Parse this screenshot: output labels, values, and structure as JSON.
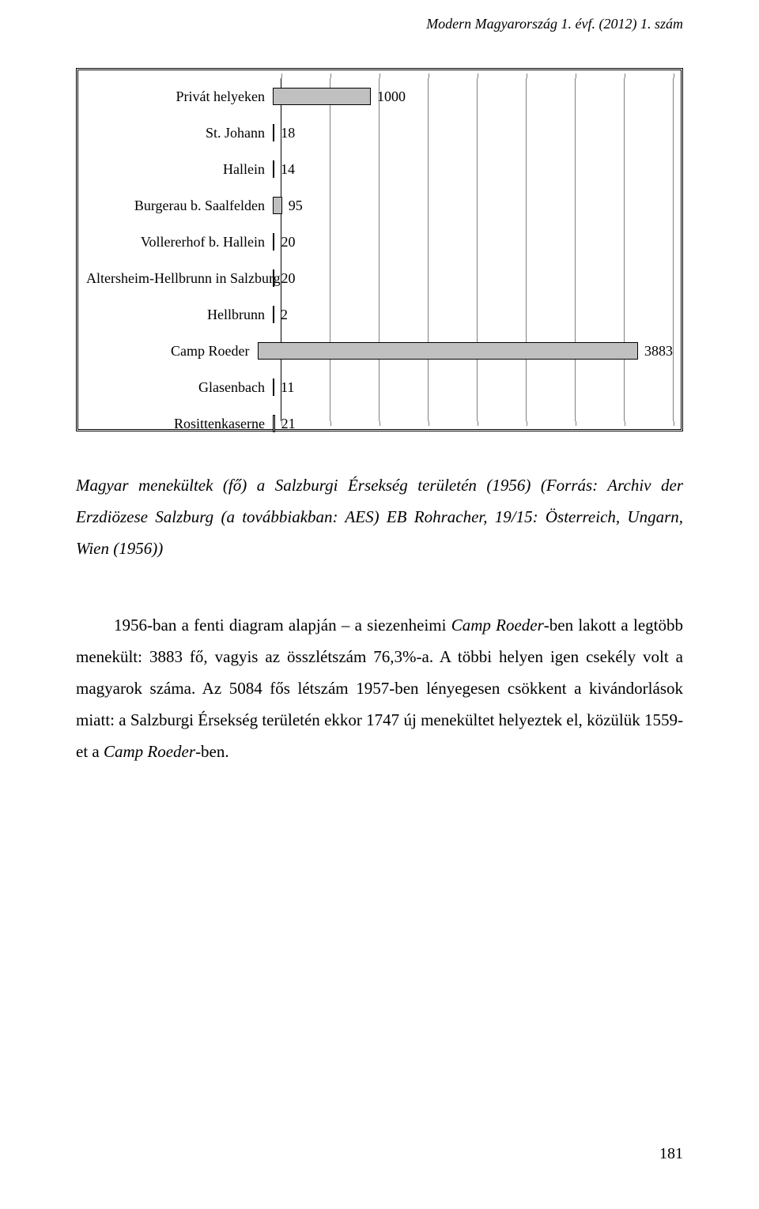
{
  "running_head": "Modern Magyarország 1. évf. (2012) 1. szám",
  "chart": {
    "type": "horizontal_bar",
    "x_max": 4000,
    "grid_step": 500,
    "background_color": "#ffffff",
    "grid_color": "#808080",
    "bar_fill": "#c0c0c0",
    "bar_border": "#000000",
    "label_font_size": 18,
    "value_font_size": 18,
    "categories": [
      {
        "label": "Privát helyeken",
        "value": 1000
      },
      {
        "label": "St. Johann",
        "value": 18
      },
      {
        "label": "Hallein",
        "value": 14
      },
      {
        "label": "Burgerau b. Saalfelden",
        "value": 95
      },
      {
        "label": "Vollererhof b. Hallein",
        "value": 20
      },
      {
        "label": "Altersheim-Hellbrunn in Salzburg",
        "value": 20
      },
      {
        "label": "Hellbrunn",
        "value": 2
      },
      {
        "label": "Camp Roeder",
        "value": 3883
      },
      {
        "label": "Glasenbach",
        "value": 11
      },
      {
        "label": "Rosittenkaserne",
        "value": 21
      }
    ]
  },
  "figure_caption": {
    "line1": "Magyar menekültek (fő) a Salzburgi Érsekség területén (1956) (Forrás: Archiv der Erzdiözese",
    "line2": "Salzburg (a továbbiakban: AES) EB Rohracher, 19/15: Österreich, Ungarn, Wien (1956))"
  },
  "body_paragraph_parts": {
    "p1": "1956-ban a fenti diagram alapján – a siezenheimi ",
    "p2_em": "Camp Roeder",
    "p3": "-ben lakott a legtöbb menekült: 3883 fő, vagyis az összlétszám 76,3%-a. A többi helyen igen csekély volt a magyarok száma. Az 5084 fős létszám 1957-ben lényegesen csökkent a kivándorlások miatt: a Salzburgi Érsekség területén ekkor 1747 új menekültet helyeztek el, közülük 1559-et a ",
    "p4_em": "Camp Roeder",
    "p5": "-ben."
  },
  "page_number": "181"
}
